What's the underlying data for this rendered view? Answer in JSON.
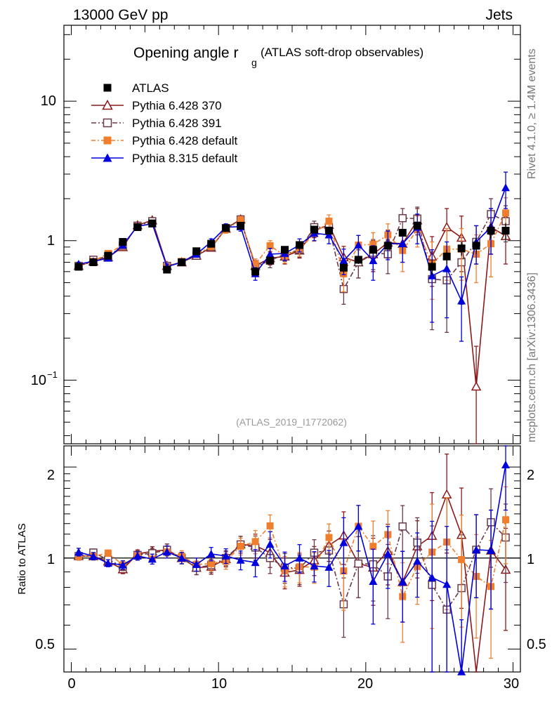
{
  "header": {
    "left": "13000 GeV pp",
    "right": "Jets"
  },
  "side_text": {
    "rivet": "Rivet 4.1.0, ≥ 1.4M events",
    "mcplots": "mcplots.cern.ch [arXiv:1306.3436]"
  },
  "chart_data": {
    "type": "scatter",
    "title_main": "Opening angle r",
    "title_sub": "g",
    "title_note": "(ATLAS soft-drop observables)",
    "analysis_tag": "(ATLAS_2019_I1772062)",
    "xlim": [
      -0.5,
      30.5
    ],
    "main_ylim": [
      0.035,
      35
    ],
    "main_yscale": "log",
    "main_yticks": [
      {
        "value": 0.1,
        "base": "10",
        "exp": "−1"
      },
      {
        "value": 1,
        "base": "1",
        "exp": ""
      },
      {
        "value": 10,
        "base": "10",
        "exp": ""
      }
    ],
    "ratio_ylim": [
      0.42,
      2.35
    ],
    "ratio_yscale": "log",
    "ratio_ylabel": "Ratio to ATLAS",
    "ratio_yticks": [
      "0.5",
      "1",
      "2"
    ],
    "xticks": [
      "0",
      "10",
      "20",
      "30"
    ],
    "x": [
      0.5,
      1.5,
      2.5,
      3.5,
      4.5,
      5.5,
      6.5,
      7.5,
      8.5,
      9.5,
      10.5,
      11.5,
      12.5,
      13.5,
      14.5,
      15.5,
      16.5,
      17.5,
      18.5,
      19.5,
      20.5,
      21.5,
      22.5,
      23.5,
      24.5,
      25.5,
      26.5,
      27.5,
      28.5,
      29.5
    ],
    "series": [
      {
        "name": "ATLAS",
        "color": "#000000",
        "marker": "square-filled",
        "values": [
          0.65,
          0.7,
          0.78,
          0.98,
          1.25,
          1.33,
          0.62,
          0.7,
          0.84,
          0.95,
          1.23,
          1.28,
          0.6,
          0.72,
          0.86,
          0.93,
          1.2,
          1.18,
          0.64,
          0.73,
          0.86,
          0.92,
          1.14,
          1.28,
          0.65,
          0.77,
          0.88,
          0.92,
          1.18,
          1.18
        ],
        "errors": [
          0.01,
          0.01,
          0.01,
          0.02,
          0.02,
          0.02,
          0.01,
          0.01,
          0.02,
          0.02,
          0.02,
          0.02,
          0.03,
          0.03,
          0.03,
          0.03,
          0.03,
          0.04,
          0.05,
          0.05,
          0.06,
          0.06,
          0.07,
          0.08,
          0.08,
          0.09,
          0.1,
          0.12,
          0.14,
          0.16
        ]
      },
      {
        "name": "Pythia 6.428 370",
        "color": "#8b1a1a",
        "marker": "triangle-open",
        "dash": "",
        "values": [
          0.66,
          0.71,
          0.76,
          0.9,
          1.29,
          1.4,
          0.66,
          0.7,
          0.78,
          0.89,
          1.22,
          1.42,
          0.66,
          0.75,
          0.77,
          0.85,
          1.18,
          1.3,
          0.76,
          0.7,
          0.8,
          0.97,
          0.95,
          1.4,
          0.77,
          1.25,
          1.05,
          0.09,
          1.25,
          1.08
        ],
        "errors": [
          0.02,
          0.02,
          0.02,
          0.03,
          0.04,
          0.05,
          0.03,
          0.03,
          0.04,
          0.05,
          0.07,
          0.09,
          0.06,
          0.08,
          0.09,
          0.1,
          0.13,
          0.15,
          0.15,
          0.16,
          0.2,
          0.22,
          0.25,
          0.3,
          0.3,
          0.45,
          0.45,
          0.085,
          0.45,
          0.4
        ]
      },
      {
        "name": "Pythia 6.428 391",
        "color": "#6b3a4a",
        "marker": "square-open",
        "dash": "7,3,2,3",
        "values": [
          0.66,
          0.73,
          0.77,
          0.92,
          1.28,
          1.38,
          0.66,
          0.7,
          0.78,
          0.9,
          1.23,
          1.42,
          0.65,
          0.72,
          0.8,
          0.86,
          1.25,
          1.25,
          0.45,
          0.7,
          0.82,
          0.8,
          1.45,
          1.44,
          0.53,
          0.52,
          0.7,
          0.98,
          1.55,
          1.38
        ],
        "errors": [
          0.02,
          0.02,
          0.02,
          0.03,
          0.04,
          0.05,
          0.03,
          0.03,
          0.04,
          0.05,
          0.07,
          0.09,
          0.06,
          0.08,
          0.09,
          0.1,
          0.13,
          0.15,
          0.1,
          0.16,
          0.2,
          0.22,
          0.25,
          0.3,
          0.3,
          0.3,
          0.35,
          0.3,
          0.45,
          0.4
        ]
      },
      {
        "name": "Pythia 6.428 default",
        "color": "#f07f2d",
        "marker": "square-filled",
        "dash": "6,3,2,3",
        "values": [
          0.66,
          0.71,
          0.81,
          0.93,
          1.27,
          1.32,
          0.65,
          0.71,
          0.8,
          0.91,
          1.2,
          1.4,
          0.68,
          0.92,
          0.78,
          0.87,
          1.12,
          1.38,
          0.58,
          0.93,
          0.94,
          1.1,
          0.85,
          1.2,
          0.68,
          0.87,
          0.87,
          0.8,
          0.95,
          1.58
        ],
        "errors": [
          0.02,
          0.02,
          0.02,
          0.03,
          0.04,
          0.05,
          0.03,
          0.03,
          0.04,
          0.05,
          0.07,
          0.09,
          0.06,
          0.08,
          0.09,
          0.1,
          0.13,
          0.15,
          0.15,
          0.16,
          0.2,
          0.22,
          0.25,
          0.3,
          0.3,
          0.35,
          0.35,
          0.3,
          0.4,
          0.45
        ]
      },
      {
        "name": "Pythia 8.315 default",
        "color": "#0000dd",
        "marker": "triangle-filled",
        "dash": "",
        "values": [
          0.68,
          0.71,
          0.75,
          0.93,
          1.27,
          1.32,
          0.65,
          0.7,
          0.8,
          0.98,
          1.25,
          1.26,
          0.58,
          0.8,
          0.81,
          0.93,
          1.13,
          1.1,
          0.72,
          0.93,
          0.72,
          0.95,
          0.95,
          1.25,
          0.56,
          0.63,
          0.37,
          0.98,
          1.25,
          2.4
        ],
        "errors": [
          0.02,
          0.02,
          0.02,
          0.03,
          0.04,
          0.05,
          0.03,
          0.03,
          0.04,
          0.05,
          0.07,
          0.09,
          0.06,
          0.08,
          0.09,
          0.1,
          0.13,
          0.15,
          0.15,
          0.16,
          0.2,
          0.22,
          0.25,
          0.3,
          0.3,
          0.35,
          0.18,
          0.3,
          0.45,
          0.7
        ]
      }
    ]
  }
}
